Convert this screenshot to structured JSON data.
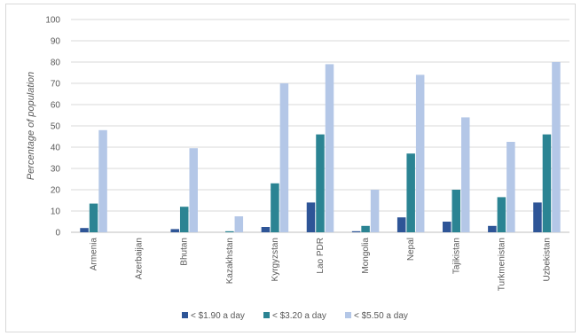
{
  "chart_data": {
    "type": "bar",
    "title": "",
    "xlabel": "",
    "ylabel": "Percentage of population",
    "ylim": [
      0,
      100
    ],
    "yticks": [
      0,
      10,
      20,
      30,
      40,
      50,
      60,
      70,
      80,
      90,
      100
    ],
    "grid": true,
    "legend_position": "bottom",
    "categories": [
      "Armenia",
      "Azerbaijan",
      "Bhutan",
      "Kazakhstan",
      "Kyrgyzstan",
      "Lao PDR",
      "Mongolia",
      "Nepal",
      "Tajikistan",
      "Turkmenistan",
      "Uzbekistan"
    ],
    "series": [
      {
        "name": "< $1.90 a day",
        "color": "#2e5597",
        "values": [
          2,
          0,
          1.5,
          0,
          2.5,
          14,
          0.5,
          7,
          5,
          3,
          14
        ]
      },
      {
        "name": "< $3.20 a day",
        "color": "#2b8493",
        "values": [
          13.5,
          0,
          12,
          0.5,
          23,
          46,
          3,
          37,
          20,
          16.5,
          46
        ]
      },
      {
        "name": "< $5.50 a day",
        "color": "#b4c7e7",
        "values": [
          48,
          0,
          39.5,
          7.5,
          70,
          79,
          20,
          74,
          54,
          42.5,
          80
        ]
      }
    ]
  }
}
